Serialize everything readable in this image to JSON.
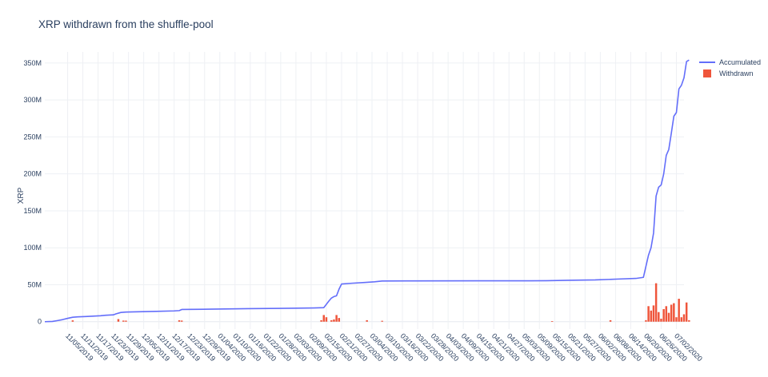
{
  "chart_data": {
    "type": "bar",
    "title": "XRP withdrawn from the shuffle-pool",
    "ylabel": "XRP",
    "xlabel": "",
    "grid": true,
    "legend_placement": "top-right",
    "x_range": [
      "2019-10-27",
      "2020-07-05"
    ],
    "ylim": [
      -10000000,
      365000000
    ],
    "y_ticks": [
      {
        "value": 0,
        "label": "0"
      },
      {
        "value": 50000000,
        "label": "50M"
      },
      {
        "value": 100000000,
        "label": "100M"
      },
      {
        "value": 150000000,
        "label": "150M"
      },
      {
        "value": 200000000,
        "label": "200M"
      },
      {
        "value": 250000000,
        "label": "250M"
      },
      {
        "value": 300000000,
        "label": "300M"
      },
      {
        "value": 350000000,
        "label": "350M"
      }
    ],
    "x_ticks": [
      "11/05/2019",
      "11/11/2019",
      "11/17/2019",
      "11/23/2019",
      "11/29/2019",
      "12/05/2019",
      "12/11/2019",
      "12/17/2019",
      "12/23/2019",
      "12/29/2019",
      "01/04/2020",
      "01/10/2020",
      "01/16/2020",
      "01/22/2020",
      "01/28/2020",
      "02/03/2020",
      "02/09/2020",
      "02/15/2020",
      "02/21/2020",
      "02/27/2020",
      "03/04/2020",
      "03/10/2020",
      "03/16/2020",
      "03/22/2020",
      "03/28/2020",
      "04/03/2020",
      "04/09/2020",
      "04/15/2020",
      "04/21/2020",
      "04/27/2020",
      "05/03/2020",
      "05/09/2020",
      "05/15/2020",
      "05/21/2020",
      "05/27/2020",
      "06/02/2020",
      "06/08/2020",
      "06/14/2020",
      "06/20/2020",
      "06/26/2020",
      "07/02/2020"
    ],
    "series": [
      {
        "name": "Accumulated",
        "type": "line",
        "color": "#636efa",
        "points": [
          [
            "2019-10-27",
            0
          ],
          [
            "2019-10-30",
            300000
          ],
          [
            "2019-11-01",
            1500000
          ],
          [
            "2019-11-03",
            2800000
          ],
          [
            "2019-11-05",
            4500000
          ],
          [
            "2019-11-07",
            6000000
          ],
          [
            "2019-11-09",
            6500000
          ],
          [
            "2019-11-12",
            7000000
          ],
          [
            "2019-11-15",
            7500000
          ],
          [
            "2019-11-18",
            8000000
          ],
          [
            "2019-11-20",
            8700000
          ],
          [
            "2019-11-23",
            9200000
          ],
          [
            "2019-11-24",
            10500000
          ],
          [
            "2019-11-26",
            12500000
          ],
          [
            "2019-11-28",
            13000000
          ],
          [
            "2019-12-03",
            13400000
          ],
          [
            "2019-12-10",
            14000000
          ],
          [
            "2019-12-17",
            14600000
          ],
          [
            "2019-12-19",
            15000000
          ],
          [
            "2019-12-20",
            16500000
          ],
          [
            "2019-12-31",
            16900000
          ],
          [
            "2020-01-15",
            17600000
          ],
          [
            "2020-01-28",
            18000000
          ],
          [
            "2020-02-10",
            18600000
          ],
          [
            "2020-02-14",
            19000000
          ],
          [
            "2020-02-16",
            28000000
          ],
          [
            "2020-02-17",
            32000000
          ],
          [
            "2020-02-18",
            34000000
          ],
          [
            "2020-02-19",
            35000000
          ],
          [
            "2020-02-20",
            44000000
          ],
          [
            "2020-02-21",
            51000000
          ],
          [
            "2020-02-25",
            52000000
          ],
          [
            "2020-03-01",
            53000000
          ],
          [
            "2020-03-05",
            54000000
          ],
          [
            "2020-03-08",
            55000000
          ],
          [
            "2020-03-20",
            55200000
          ],
          [
            "2020-04-15",
            55300000
          ],
          [
            "2020-05-05",
            55300000
          ],
          [
            "2020-05-12",
            55500000
          ],
          [
            "2020-05-20",
            56000000
          ],
          [
            "2020-05-31",
            56500000
          ],
          [
            "2020-06-10",
            57800000
          ],
          [
            "2020-06-16",
            58500000
          ],
          [
            "2020-06-19",
            60000000
          ],
          [
            "2020-06-20",
            75000000
          ],
          [
            "2020-06-21",
            90000000
          ],
          [
            "2020-06-22",
            100000000
          ],
          [
            "2020-06-23",
            120000000
          ],
          [
            "2020-06-24",
            170000000
          ],
          [
            "2020-06-25",
            182000000
          ],
          [
            "2020-06-26",
            185000000
          ],
          [
            "2020-06-27",
            200000000
          ],
          [
            "2020-06-28",
            225000000
          ],
          [
            "2020-06-29",
            233000000
          ],
          [
            "2020-06-30",
            255000000
          ],
          [
            "2020-07-01",
            278000000
          ],
          [
            "2020-07-02",
            283000000
          ],
          [
            "2020-07-03",
            315000000
          ],
          [
            "2020-07-04",
            320000000
          ],
          [
            "2020-07-05",
            330000000
          ],
          [
            "2020-07-06",
            352000000
          ],
          [
            "2020-07-07",
            354000000
          ]
        ]
      },
      {
        "name": "Withdrawn",
        "type": "bar",
        "color": "#ef553b",
        "points": [
          [
            "2019-11-07",
            1800000
          ],
          [
            "2019-11-25",
            3500000
          ],
          [
            "2019-11-27",
            1500000
          ],
          [
            "2019-11-28",
            1400000
          ],
          [
            "2019-12-19",
            1900000
          ],
          [
            "2019-12-20",
            1500000
          ],
          [
            "2020-02-13",
            2000000
          ],
          [
            "2020-02-14",
            9000000
          ],
          [
            "2020-02-15",
            6000000
          ],
          [
            "2020-02-17",
            2000000
          ],
          [
            "2020-02-18",
            3000000
          ],
          [
            "2020-02-19",
            9000000
          ],
          [
            "2020-02-20",
            5000000
          ],
          [
            "2020-03-02",
            2000000
          ],
          [
            "2020-03-08",
            1200000
          ],
          [
            "2020-05-14",
            700000
          ],
          [
            "2020-06-06",
            2000000
          ],
          [
            "2020-06-20",
            2000000
          ],
          [
            "2020-06-21",
            21000000
          ],
          [
            "2020-06-22",
            15000000
          ],
          [
            "2020-06-23",
            22000000
          ],
          [
            "2020-06-24",
            52000000
          ],
          [
            "2020-06-25",
            13000000
          ],
          [
            "2020-06-26",
            4000000
          ],
          [
            "2020-06-27",
            17000000
          ],
          [
            "2020-06-28",
            21000000
          ],
          [
            "2020-06-29",
            12000000
          ],
          [
            "2020-06-30",
            23000000
          ],
          [
            "2020-07-01",
            25000000
          ],
          [
            "2020-07-02",
            6000000
          ],
          [
            "2020-07-03",
            31000000
          ],
          [
            "2020-07-04",
            6000000
          ],
          [
            "2020-07-05",
            10000000
          ],
          [
            "2020-07-06",
            26000000
          ],
          [
            "2020-07-07",
            2000000
          ]
        ]
      }
    ]
  }
}
